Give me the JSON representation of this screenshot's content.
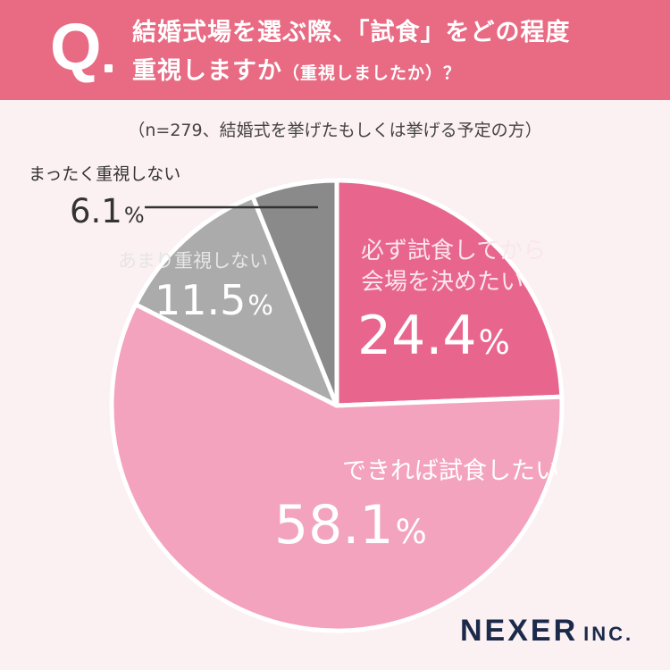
{
  "header": {
    "q_mark": "Q",
    "line1": "結婚式場を選ぶ際、「試食」をどの程度",
    "line2_main": "重視しますか",
    "line2_sub": "（重視しましたか）？"
  },
  "sample_note": "（n=279、結婚式を挙げたもしくは挙げる予定の方）",
  "chart_data": {
    "type": "pie",
    "start": "top, clockwise",
    "slices": [
      {
        "label": [
          "必ず試食してから",
          "会場を決めたい"
        ],
        "value": 24.4,
        "value_text": "24.4",
        "color": "#e8668e"
      },
      {
        "label": [
          "できれば試食したい"
        ],
        "value": 58.1,
        "value_text": "58.1",
        "color": "#f3a3bd"
      },
      {
        "label": [
          "あまり重視しない"
        ],
        "value": 11.5,
        "value_text": "11.5",
        "color": "#ababab"
      },
      {
        "label": [
          "まったく重視しない"
        ],
        "value": 6.1,
        "value_text": "6.1",
        "color": "#8b8a8b"
      }
    ],
    "unit": "%"
  },
  "logo": {
    "main": "NEXER",
    "sub": "INC."
  }
}
